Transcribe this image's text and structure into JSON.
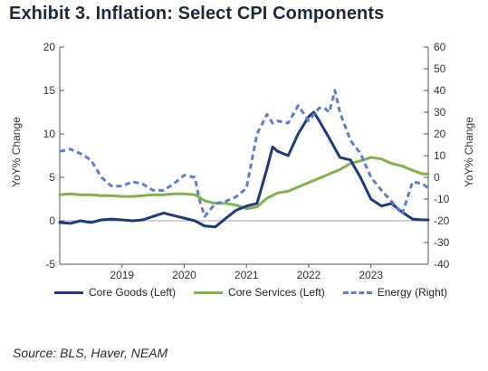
{
  "title": "Exhibit 3. Inflation: Select CPI Components",
  "source": "Source: BLS, Haver, NEAM",
  "colors": {
    "core_goods": "#1f3a7a",
    "core_services": "#7fb24a",
    "energy": "#5b7fcf"
  },
  "chart_data": {
    "type": "line",
    "xlabel": "",
    "y_left_label": "YoY% Change",
    "y_right_label": "YoY% Change",
    "x_range": [
      2018.0,
      2023.92
    ],
    "x_ticks": [
      2019,
      2020,
      2021,
      2022,
      2023
    ],
    "x_tick_labels": [
      "2019",
      "2020",
      "2021",
      "2022",
      "2023"
    ],
    "y_left_range": [
      -5,
      20
    ],
    "y_left_ticks": [
      -5,
      0,
      5,
      10,
      15,
      20
    ],
    "y_right_range": [
      -40,
      60
    ],
    "y_right_ticks": [
      -40,
      -30,
      -20,
      -10,
      0,
      10,
      20,
      30,
      40,
      50,
      60
    ],
    "grid": false,
    "legend_position": "bottom",
    "series": [
      {
        "name": "Core Goods (Left)",
        "axis": "left",
        "style": "solid",
        "x": [
          2018.0,
          2018.17,
          2018.33,
          2018.5,
          2018.67,
          2018.83,
          2019.0,
          2019.17,
          2019.33,
          2019.5,
          2019.67,
          2019.83,
          2020.0,
          2020.17,
          2020.33,
          2020.5,
          2020.67,
          2020.83,
          2021.0,
          2021.17,
          2021.33,
          2021.42,
          2021.5,
          2021.67,
          2021.83,
          2022.0,
          2022.08,
          2022.17,
          2022.25,
          2022.33,
          2022.5,
          2022.67,
          2022.83,
          2023.0,
          2023.17,
          2023.33,
          2023.5,
          2023.67,
          2023.83,
          2023.92
        ],
        "y": [
          -0.2,
          -0.3,
          0.0,
          -0.2,
          0.1,
          0.2,
          0.1,
          0.0,
          0.1,
          0.5,
          0.9,
          0.6,
          0.3,
          0.0,
          -0.6,
          -0.7,
          0.3,
          1.2,
          1.7,
          2.0,
          6.0,
          8.5,
          8.0,
          7.5,
          10.0,
          12.0,
          12.5,
          11.5,
          10.5,
          9.5,
          7.3,
          7.0,
          5.0,
          2.5,
          1.7,
          2.0,
          1.0,
          0.2,
          0.1,
          0.1
        ]
      },
      {
        "name": "Core Services (Left)",
        "axis": "left",
        "style": "solid",
        "x": [
          2018.0,
          2018.17,
          2018.33,
          2018.5,
          2018.67,
          2018.83,
          2019.0,
          2019.17,
          2019.33,
          2019.5,
          2019.67,
          2019.83,
          2020.0,
          2020.17,
          2020.33,
          2020.5,
          2020.67,
          2020.83,
          2021.0,
          2021.17,
          2021.33,
          2021.5,
          2021.67,
          2021.83,
          2022.0,
          2022.17,
          2022.33,
          2022.5,
          2022.67,
          2022.83,
          2023.0,
          2023.17,
          2023.33,
          2023.5,
          2023.67,
          2023.83,
          2023.92
        ],
        "y": [
          3.0,
          3.1,
          3.0,
          3.0,
          2.9,
          2.9,
          2.8,
          2.8,
          2.9,
          3.0,
          3.0,
          3.1,
          3.1,
          3.0,
          2.3,
          2.0,
          2.0,
          1.8,
          1.4,
          1.6,
          2.6,
          3.2,
          3.4,
          3.9,
          4.4,
          4.9,
          5.4,
          5.9,
          6.6,
          6.9,
          7.3,
          7.1,
          6.6,
          6.3,
          5.8,
          5.4,
          5.4
        ]
      },
      {
        "name": "Energy (Right)",
        "axis": "right",
        "style": "dashed",
        "x": [
          2018.0,
          2018.17,
          2018.33,
          2018.5,
          2018.67,
          2018.83,
          2019.0,
          2019.17,
          2019.33,
          2019.5,
          2019.67,
          2019.83,
          2020.0,
          2020.17,
          2020.25,
          2020.33,
          2020.5,
          2020.67,
          2020.83,
          2021.0,
          2021.17,
          2021.33,
          2021.42,
          2021.5,
          2021.67,
          2021.83,
          2022.0,
          2022.17,
          2022.25,
          2022.33,
          2022.42,
          2022.5,
          2022.67,
          2022.83,
          2023.0,
          2023.17,
          2023.33,
          2023.5,
          2023.67,
          2023.83,
          2023.92
        ],
        "y": [
          12,
          13,
          11,
          8,
          0,
          -4,
          -4,
          -2,
          -3,
          -6,
          -6,
          -3,
          1,
          0,
          -11,
          -18,
          -12,
          -11,
          -9,
          -5,
          20,
          29,
          25,
          26,
          25,
          33,
          26,
          32,
          32,
          30,
          40,
          30,
          17,
          11,
          0,
          -6,
          -11,
          -17,
          -2,
          -3,
          -5
        ]
      }
    ]
  },
  "legend": [
    {
      "label": "Core Goods (Left)"
    },
    {
      "label": "Core Services (Left)"
    },
    {
      "label": "Energy (Right)"
    }
  ]
}
